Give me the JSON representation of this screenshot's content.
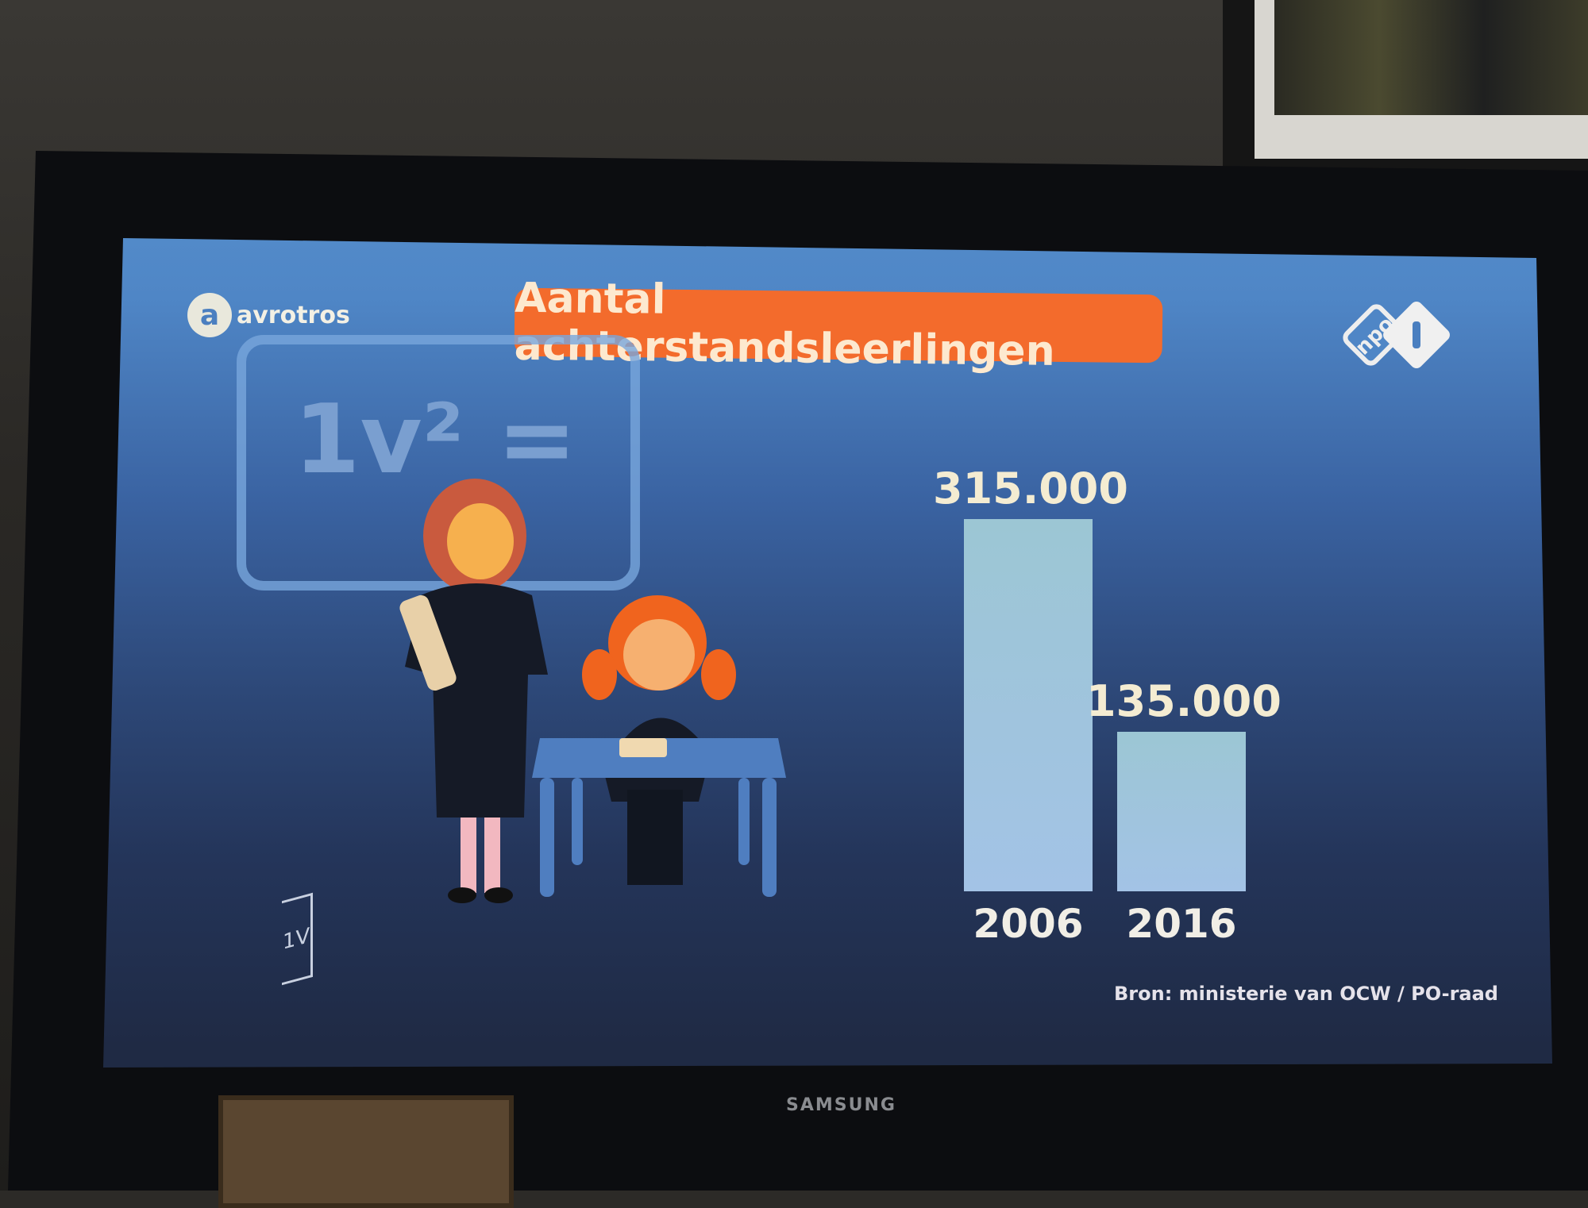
{
  "title": "Aantal achterstandsleerlingen",
  "broadcaster_logo": "avrotros",
  "channel_logo": "npo 1",
  "chalkboard_text": "1v² =",
  "corner_mark": "1V",
  "source": "Bron: ministerie van OCW / PO-raad",
  "tv_brand": "SAMSUNG",
  "colors": {
    "title_bg": "#f36b2c",
    "bar": "#a3c3e6",
    "background": "#2d4878"
  },
  "chart_data": {
    "type": "bar",
    "title": "Aantal achterstandsleerlingen",
    "categories": [
      "2006",
      "2016"
    ],
    "values": [
      315000,
      135000
    ],
    "value_labels": [
      "315.000",
      "135.000"
    ],
    "xlabel": "",
    "ylabel": "",
    "ylim": [
      0,
      315000
    ],
    "grid": false
  }
}
